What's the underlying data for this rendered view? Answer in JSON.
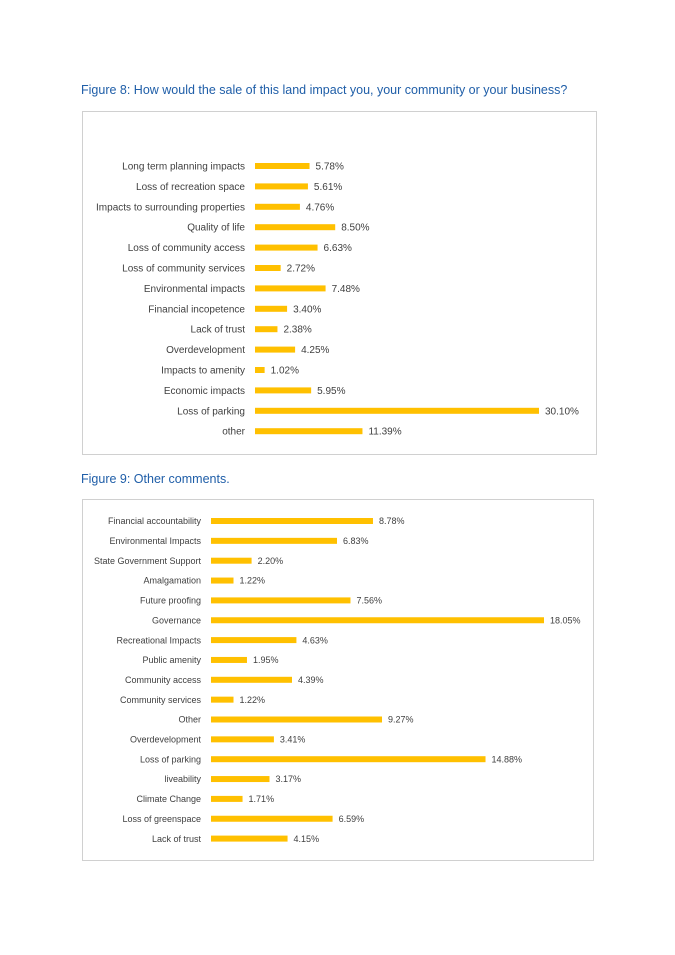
{
  "figure8": {
    "title": "Figure 8: How would the sale of this land impact you, your community or your business?"
  },
  "figure9": {
    "title": "Figure 9: Other comments."
  },
  "colors": {
    "bar": "#ffc000",
    "title": "#1f5ea8",
    "text": "#404040",
    "border": "#d0d0d0"
  },
  "chart_data": [
    {
      "type": "bar",
      "orientation": "horizontal",
      "title": "Figure 8: How would the sale of this land impact you, your community or your business?",
      "categories": [
        "Long term planning impacts",
        "Loss of recreation space",
        "Impacts to surrounding properties",
        "Quality of life",
        "Loss of community access",
        "Loss of community services",
        "Environmental impacts",
        "Financial incopetence",
        "Lack of trust",
        "Overdevelopment",
        "Impacts to amenity",
        "Economic impacts",
        "Loss of parking",
        "other"
      ],
      "values": [
        5.78,
        5.61,
        4.76,
        8.5,
        6.63,
        2.72,
        7.48,
        3.4,
        2.38,
        4.25,
        1.02,
        5.95,
        30.1,
        11.39
      ],
      "labels": [
        "5.78%",
        "5.61%",
        "4.76%",
        "8.50%",
        "6.63%",
        "2.72%",
        "7.48%",
        "3.40%",
        "2.38%",
        "4.25%",
        "1.02%",
        "5.95%",
        "30.10%",
        "11.39%"
      ],
      "unit": "%",
      "grid": false,
      "legend": "none",
      "xlim": [
        0,
        30.1
      ]
    },
    {
      "type": "bar",
      "orientation": "horizontal",
      "title": "Figure 9: Other comments.",
      "categories": [
        "Financial accountability",
        "Environmental Impacts",
        "State Government Support",
        "Amalgamation",
        "Future proofing",
        "Governance",
        "Recreational Impacts",
        "Public amenity",
        "Community access",
        "Community services",
        "Other",
        "Overdevelopment",
        "Loss of parking",
        "liveability",
        "Climate Change",
        "Loss of greenspace",
        "Lack of trust"
      ],
      "values": [
        8.78,
        6.83,
        2.2,
        1.22,
        7.56,
        18.05,
        4.63,
        1.95,
        4.39,
        1.22,
        9.27,
        3.41,
        14.88,
        3.17,
        1.71,
        6.59,
        4.15
      ],
      "labels": [
        "8.78%",
        "6.83%",
        "2.20%",
        "1.22%",
        "7.56%",
        "18.05%",
        "4.63%",
        "1.95%",
        "4.39%",
        "1.22%",
        "9.27%",
        "3.41%",
        "14.88%",
        "3.17%",
        "1.71%",
        "6.59%",
        "4.15%"
      ],
      "unit": "%",
      "grid": false,
      "legend": "none",
      "xlim": [
        0,
        18.05
      ]
    }
  ]
}
